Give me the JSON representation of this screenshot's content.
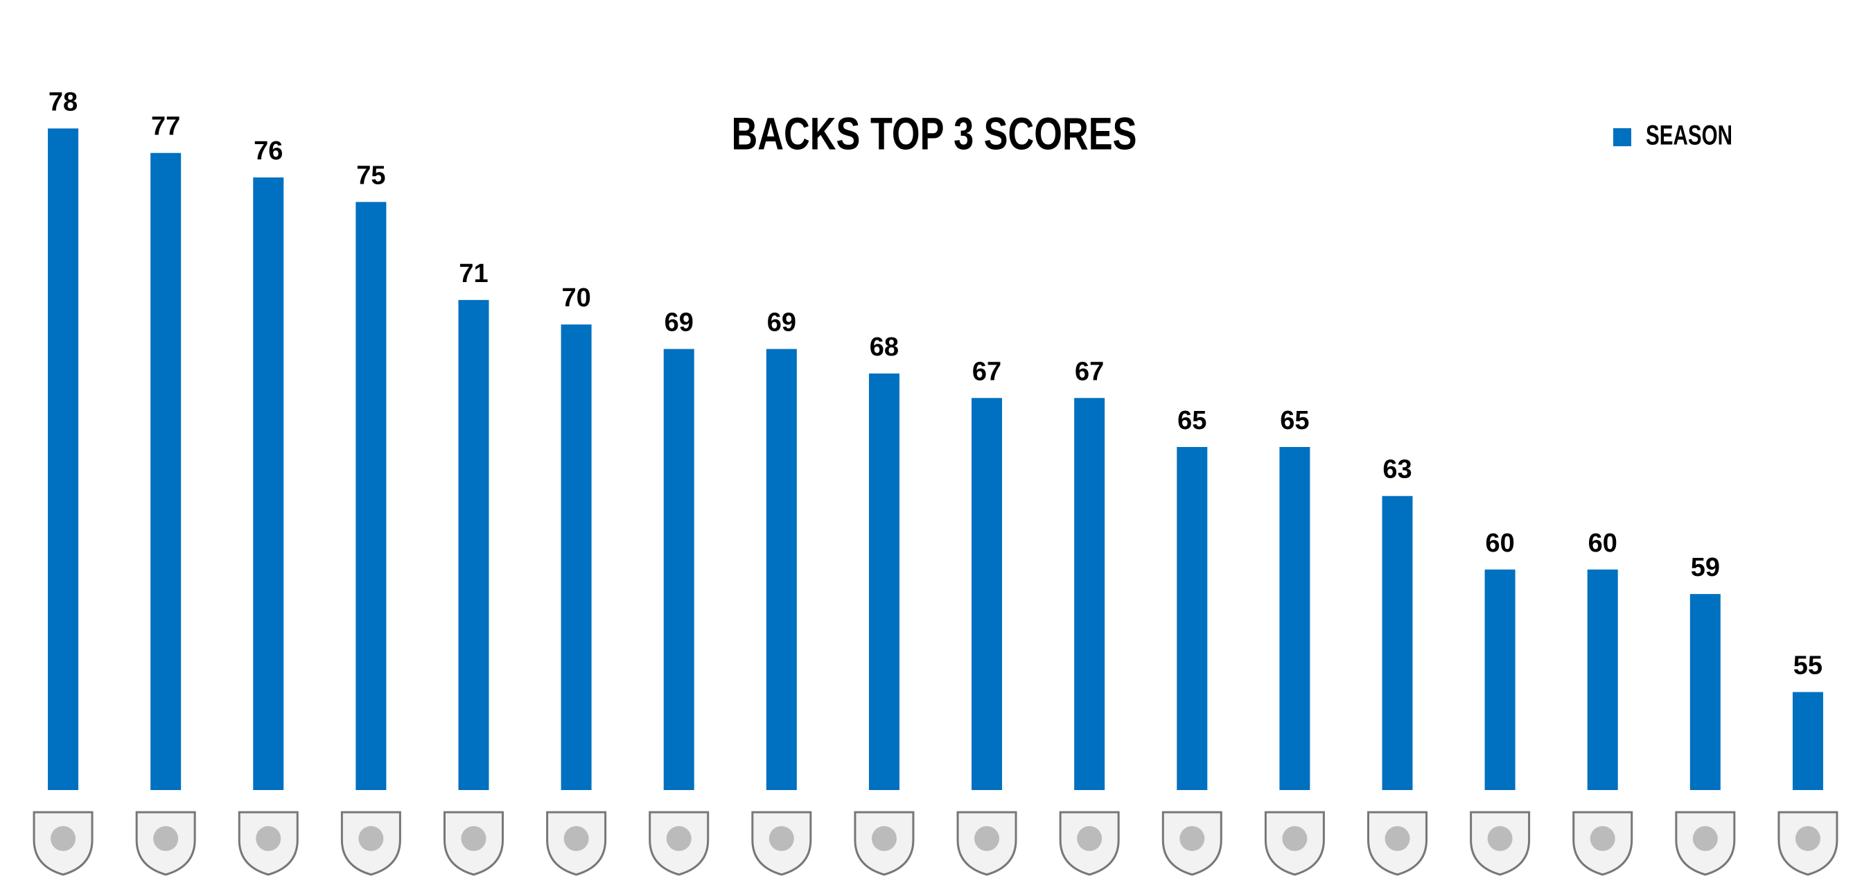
{
  "chart_data": {
    "type": "bar",
    "title": "BACKS TOP 3 SCORES",
    "categories": [
      null,
      null,
      null,
      null,
      null,
      null,
      null,
      null,
      null,
      null,
      null,
      null,
      null,
      null,
      null,
      null,
      null,
      null
    ],
    "series": [
      {
        "name": "SEASON",
        "color": "#0070c0",
        "values": [
          78,
          77,
          76,
          75,
          71,
          70,
          69,
          69,
          68,
          67,
          67,
          65,
          65,
          63,
          60,
          60,
          59,
          55
        ]
      }
    ],
    "ylim": [
      51,
      79
    ],
    "legend": "top-right"
  }
}
